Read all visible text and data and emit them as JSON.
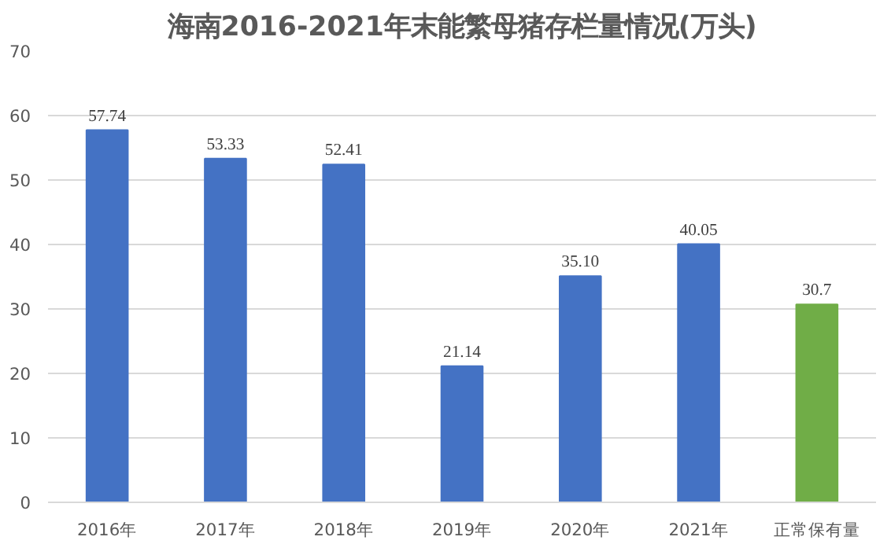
{
  "chart_data": {
    "type": "bar",
    "title": "海南2016-2021年末能繁母猪存栏量情况(万头)",
    "categories": [
      "2016年",
      "2017年",
      "2018年",
      "2019年",
      "2020年",
      "2021年",
      "正常保有量"
    ],
    "values": [
      57.74,
      53.33,
      52.41,
      21.14,
      35.1,
      40.05,
      30.7
    ],
    "value_labels": [
      "57.74",
      "53.33",
      "52.41",
      "21.14",
      "35.10",
      "40.05",
      "30.7"
    ],
    "colors": [
      "#4472c4",
      "#4472c4",
      "#4472c4",
      "#4472c4",
      "#4472c4",
      "#4472c4",
      "#70ad47"
    ],
    "ylim": [
      0,
      70
    ],
    "yticks": [
      0,
      10,
      20,
      30,
      40,
      50,
      60,
      70
    ],
    "grid": "y"
  }
}
